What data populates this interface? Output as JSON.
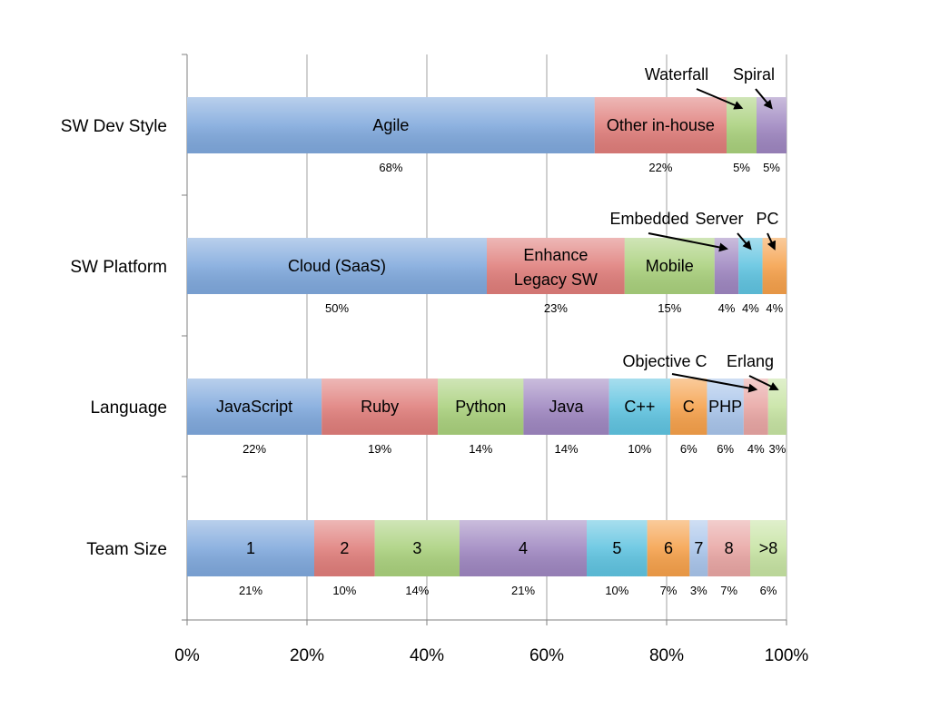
{
  "chart_data": {
    "type": "bar",
    "stacked": "100%",
    "orientation": "horizontal",
    "xlim": [
      0,
      100
    ],
    "x_ticks": [
      "0%",
      "20%",
      "40%",
      "60%",
      "80%",
      "100%"
    ],
    "grid": true,
    "categories": [
      "SW Dev Style",
      "SW Platform",
      "Language",
      "Team Size"
    ],
    "rows": [
      {
        "category": "SW Dev Style",
        "segments": [
          {
            "label": "Agile",
            "value": 68,
            "pct_label": "68%",
            "color": "#7fa8dc"
          },
          {
            "label": "Other in-house",
            "value": 22,
            "pct_label": "22%",
            "color": "#df7d7a"
          },
          {
            "label": "Waterfall",
            "value": 5,
            "pct_label": "5%",
            "color": "#a9d07c",
            "callout": true
          },
          {
            "label": "Spiral",
            "value": 5,
            "pct_label": "5%",
            "color": "#9e86c0",
            "callout": true
          }
        ]
      },
      {
        "category": "SW Platform",
        "segments": [
          {
            "label": "Cloud (SaaS)",
            "value": 50,
            "pct_label": "50%",
            "color": "#7fa8dc"
          },
          {
            "label": "Enhance\nLegacy SW",
            "value": 23,
            "pct_label": "23%",
            "color": "#df7d7a"
          },
          {
            "label": "Mobile",
            "value": 15,
            "pct_label": "15%",
            "color": "#a9d07c"
          },
          {
            "label": "Embedded",
            "value": 4,
            "pct_label": "4%",
            "color": "#9e86c0",
            "callout": true
          },
          {
            "label": "Server",
            "value": 4,
            "pct_label": "4%",
            "color": "#5fc3e0",
            "callout": true
          },
          {
            "label": "PC",
            "value": 4,
            "pct_label": "4%",
            "color": "#f5a04a",
            "callout": true
          }
        ]
      },
      {
        "category": "Language",
        "segments": [
          {
            "label": "JavaScript",
            "value": 22,
            "pct_label": "22%",
            "color": "#7fa8dc"
          },
          {
            "label": "Ruby",
            "value": 19,
            "pct_label": "19%",
            "color": "#df7d7a"
          },
          {
            "label": "Python",
            "value": 14,
            "pct_label": "14%",
            "color": "#a9d07c"
          },
          {
            "label": "Java",
            "value": 14,
            "pct_label": "14%",
            "color": "#9e86c0"
          },
          {
            "label": "C++",
            "value": 10,
            "pct_label": "10%",
            "color": "#5fc3e0"
          },
          {
            "label": "C",
            "value": 6,
            "pct_label": "6%",
            "color": "#f5a04a"
          },
          {
            "label": "PHP",
            "value": 6,
            "pct_label": "6%",
            "color": "#a8c4ea"
          },
          {
            "label": "Objective C",
            "value": 4,
            "pct_label": "4%",
            "color": "#e8a5a3",
            "callout": true
          },
          {
            "label": "Erlang",
            "value": 3,
            "pct_label": "3%",
            "color": "#c6e3a2",
            "callout": true
          }
        ]
      },
      {
        "category": "Team Size",
        "segments": [
          {
            "label": "1",
            "value": 21,
            "pct_label": "21%",
            "color": "#7fa8dc"
          },
          {
            "label": "2",
            "value": 10,
            "pct_label": "10%",
            "color": "#df7d7a"
          },
          {
            "label": "3",
            "value": 14,
            "pct_label": "14%",
            "color": "#a9d07c"
          },
          {
            "label": "4",
            "value": 21,
            "pct_label": "21%",
            "color": "#9e86c0"
          },
          {
            "label": "5",
            "value": 10,
            "pct_label": "10%",
            "color": "#5fc3e0"
          },
          {
            "label": "6",
            "value": 7,
            "pct_label": "7%",
            "color": "#f5a04a"
          },
          {
            "label": "7",
            "value": 3,
            "pct_label": "3%",
            "color": "#a8c4ea"
          },
          {
            "label": "8",
            "value": 7,
            "pct_label": "7%",
            "color": "#e8a5a3"
          },
          {
            "label": ">8",
            "value": 6,
            "pct_label": "6%",
            "color": "#c6e3a2"
          }
        ]
      }
    ]
  }
}
